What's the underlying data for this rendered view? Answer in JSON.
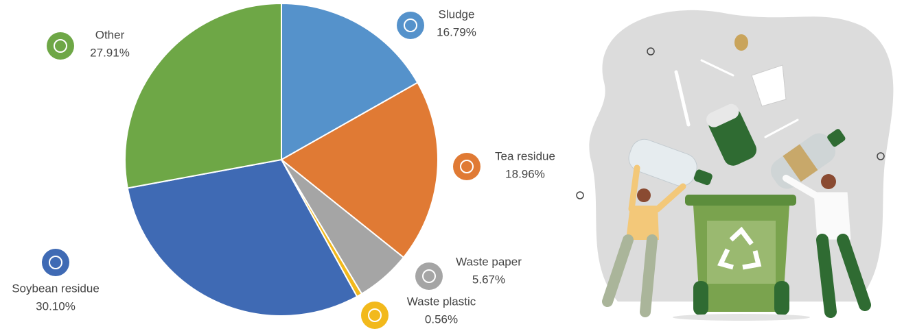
{
  "chart_data": {
    "type": "pie",
    "categories": [
      "Sludge",
      "Tea residue",
      "Waste paper",
      "Waste plastic",
      "Soybean residue",
      "Other"
    ],
    "values": [
      16.79,
      18.96,
      5.67,
      0.56,
      30.1,
      27.91
    ],
    "value_labels": [
      "16.79%",
      "18.96%",
      "5.67%",
      "0.56%",
      "30.10%",
      "27.91%"
    ],
    "colors": [
      "#5592cb",
      "#e07a34",
      "#a5a5a5",
      "#f2b91c",
      "#3f6ab4",
      "#6ea746"
    ]
  }
}
